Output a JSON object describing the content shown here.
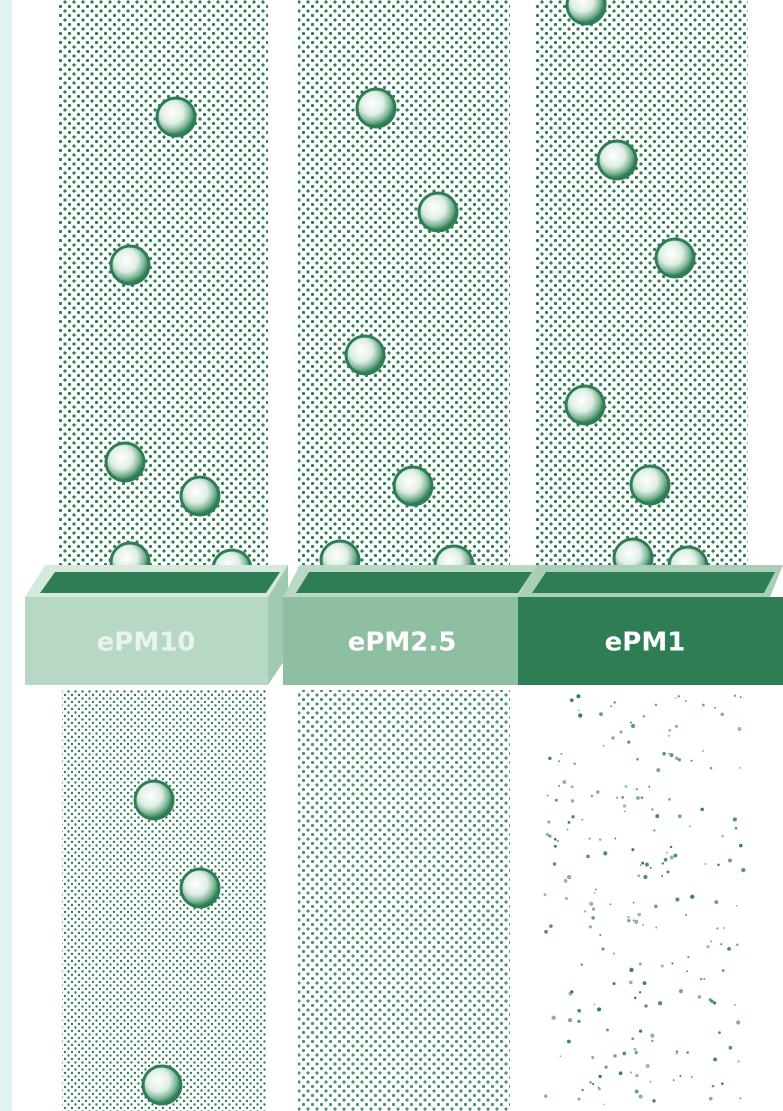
{
  "filters": [
    {
      "label": "ePM10"
    },
    {
      "label": "ePM2.5"
    },
    {
      "label": "ePM1"
    }
  ]
}
